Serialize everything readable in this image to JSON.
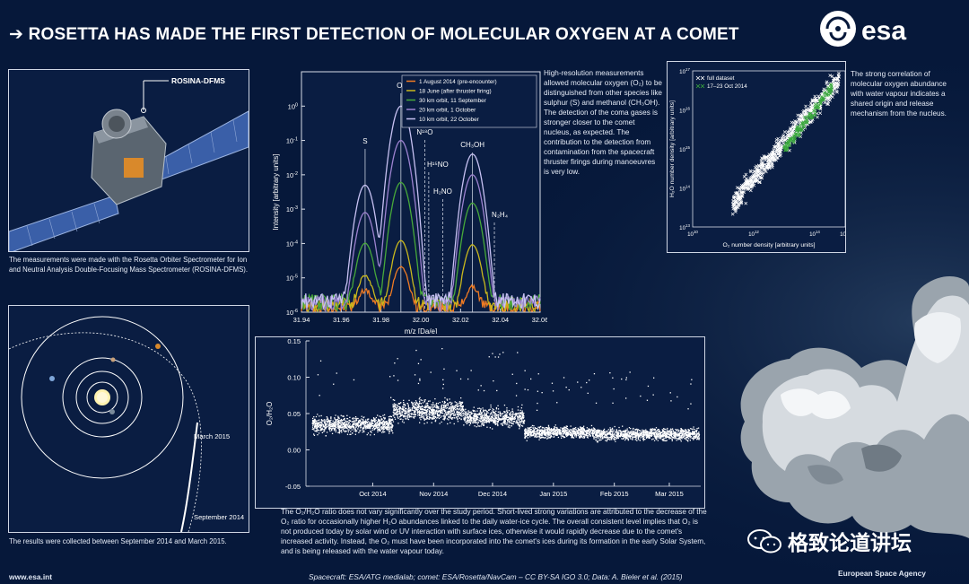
{
  "header": {
    "arrow": "➔",
    "title": "ROSETTA HAS MADE THE FIRST DETECTION OF MOLECULAR OXYGEN AT A COMET",
    "logo_text": "esa"
  },
  "colors": {
    "background": "#06183a",
    "series_aug": "#f07b23",
    "series_jun": "#c9b81d",
    "series_30km": "#47a83a",
    "series_20km": "#9c82cf",
    "series_10km": "#c7c1f2",
    "full_dataset": "#ffffff",
    "oct_subset": "#39a83c"
  },
  "spacecraft_panel": {
    "label": "ROSINA-DFMS",
    "caption": "The measurements were made with the Rosetta Orbiter Spectrometer for Ion and Neutral Analysis Double-Focusing Mass Spectrometer (ROSINA-DFMS)."
  },
  "orbit_panel": {
    "label_march": "March 2015",
    "label_september": "September 2014",
    "caption": "The results were collected between September 2014 and March 2015."
  },
  "spectrum_text": "High-resolution measurements allowed molecular oxygen (O₂) to be distinguished from other species like sulphur (S) and methanol (CH₃OH). The detection of the coma gases is stronger closer to the comet nucleus, as expected. The contribution to the detection from contamination from the spacecraft thruster firings during manoeuvres is very low.",
  "scatter_text": "The strong correlation of molecular oxygen abundance with water vapour indicates a shared origin and release mechanism from the nucleus.",
  "timeseries_text": "The O₂/H₂O ratio does not vary significantly over the study period. Short-lived strong variations are attributed to the decrease of the O₂ ratio for occasionally higher H₂O abundances linked to the daily water-ice cycle. The overall consistent level implies that O₂ is not produced today by solar wind or UV interaction with surface ices, otherwise it would rapidly decrease due to the comet's increased activity. Instead, the O₂ must have been incorporated into the comet's ices during its formation in the early Solar System, and is being released with the water vapour today.",
  "footer": {
    "url": "www.esa.int",
    "credits": "Spacecraft: ESA/ATG medialab; comet: ESA/Rosetta/NavCam – CC BY-SA IGO 3.0; Data: A. Bieler et al. (2015)",
    "agency": "European Space Agency",
    "watermark": "格致论道讲坛"
  },
  "chart_data": [
    {
      "type": "line",
      "name": "mass-spectrum",
      "xlabel": "m/z [Da/e]",
      "ylabel": "Intensity [arbitrary units]",
      "xlim": [
        31.94,
        32.06
      ],
      "ylim": [
        1e-06,
        10
      ],
      "yscale": "log",
      "xticks": [
        "31.94",
        "31.96",
        "31.98",
        "32.00",
        "32.02",
        "32.04",
        "32.06"
      ],
      "yticks": [
        {
          "base": "10",
          "exp": "0",
          "v": 1
        },
        {
          "base": "10",
          "exp": "-1",
          "v": 0.1
        },
        {
          "base": "10",
          "exp": "-2",
          "v": 0.01
        },
        {
          "base": "10",
          "exp": "-3",
          "v": 0.001
        },
        {
          "base": "10",
          "exp": "-4",
          "v": 0.0001
        },
        {
          "base": "10",
          "exp": "-5",
          "v": 1e-05
        },
        {
          "base": "10",
          "exp": "-6",
          "v": 1e-06
        }
      ],
      "peaks": [
        {
          "label": "S",
          "x": 31.972,
          "line": "solid"
        },
        {
          "label": "O₂",
          "x": 31.99,
          "line": "solid"
        },
        {
          "label": "N¹⁸O",
          "x": 32.002,
          "line": "dashed"
        },
        {
          "label": "H¹⁵NO",
          "x": 32.004,
          "line": "dashed"
        },
        {
          "label": "H₂NO",
          "x": 32.011,
          "line": "dashed"
        },
        {
          "label": "CH₃OH",
          "x": 32.026,
          "line": "solid"
        },
        {
          "label": "N₂H₄",
          "x": 32.037,
          "line": "dashed"
        }
      ],
      "legend_position": "top-right",
      "series": [
        {
          "name": "1 August 2014 (pre-encounter)",
          "color": "#f07b23",
          "noise": 1.3e-06,
          "peaks": [
            {
              "x": 31.972,
              "h": 3e-06,
              "w": 0.0035
            },
            {
              "x": 31.99,
              "h": 2e-05,
              "w": 0.0035
            },
            {
              "x": 32.026,
              "h": 4e-06,
              "w": 0.0035
            }
          ]
        },
        {
          "name": "18 June (after thruster firing)",
          "color": "#c9b81d",
          "noise": 1.6e-06,
          "peaks": [
            {
              "x": 31.972,
              "h": 1e-05,
              "w": 0.0035
            },
            {
              "x": 31.99,
              "h": 0.00012,
              "w": 0.0035
            },
            {
              "x": 32.026,
              "h": 9e-05,
              "w": 0.0035
            }
          ]
        },
        {
          "name": "30 km orbit, 11 September",
          "color": "#47a83a",
          "noise": 2e-06,
          "peaks": [
            {
              "x": 31.972,
              "h": 0.0001,
              "w": 0.0035
            },
            {
              "x": 31.99,
              "h": 0.006,
              "w": 0.0035
            },
            {
              "x": 32.026,
              "h": 0.0015,
              "w": 0.0035
            }
          ]
        },
        {
          "name": "20 km orbit, 1 October",
          "color": "#9c82cf",
          "noise": 1.8e-06,
          "peaks": [
            {
              "x": 31.972,
              "h": 0.0008,
              "w": 0.0035
            },
            {
              "x": 31.99,
              "h": 0.1,
              "w": 0.0035
            },
            {
              "x": 32.026,
              "h": 0.01,
              "w": 0.0035
            }
          ]
        },
        {
          "name": "10 km orbit, 22 October",
          "color": "#c7c1f2",
          "noise": 2.2e-06,
          "peaks": [
            {
              "x": 31.972,
              "h": 0.005,
              "w": 0.0035
            },
            {
              "x": 31.99,
              "h": 1.0,
              "w": 0.0035
            },
            {
              "x": 32.026,
              "h": 0.04,
              "w": 0.0035
            }
          ]
        }
      ]
    },
    {
      "type": "scatter",
      "name": "o2-vs-h2o",
      "xlabel": "O₂ number density [arbitrary units]",
      "ylabel": "H₂O number density [arbitrary units]",
      "xscale": "log",
      "yscale": "log",
      "xlim": [
        10000000000.0,
        1000000000000000.0
      ],
      "ylim": [
        10000000000000.0,
        1e+17
      ],
      "xticks": [
        {
          "base": "10",
          "exp": "10",
          "v": 10000000000.0
        },
        {
          "base": "10",
          "exp": "12",
          "v": 1000000000000.0
        },
        {
          "base": "10",
          "exp": "14",
          "v": 100000000000000.0
        },
        {
          "base": "10",
          "exp": "16",
          "v": 1e+16
        }
      ],
      "yticks": [
        {
          "base": "10",
          "exp": "17",
          "v": 1e+17
        },
        {
          "base": "10",
          "exp": "16",
          "v": 1e+16
        },
        {
          "base": "10",
          "exp": "15",
          "v": 1000000000000000.0
        },
        {
          "base": "10",
          "exp": "14",
          "v": 100000000000000.0
        },
        {
          "base": "10",
          "exp": "13",
          "v": 10000000000000.0
        }
      ],
      "legend_position": "top-left",
      "series": [
        {
          "name": "full dataset",
          "color": "#ffffff",
          "marker": "x",
          "trend": {
            "log_x": [
              11.3,
              14.8
            ],
            "log_y": [
              13.6,
              16.8
            ],
            "spread": 0.28,
            "count": 650
          }
        },
        {
          "name": "17–23 Oct 2014",
          "color": "#39a83c",
          "marker": "x",
          "trend": {
            "log_x": [
              13.0,
              14.6
            ],
            "log_y": [
              15.0,
              16.6
            ],
            "spread": 0.12,
            "count": 150
          }
        }
      ]
    },
    {
      "type": "scatter",
      "name": "o2-h2o-ratio-timeseries",
      "ylabel": "O₂/H₂O",
      "xlabel": "",
      "xlim": [
        "2014-09-11",
        "2015-03-31"
      ],
      "ylim": [
        -0.05,
        0.15
      ],
      "xticks": [
        "Oct 2014",
        "Nov 2014",
        "Dec 2014",
        "Jan 2015",
        "Feb 2015",
        "Mar 2015"
      ],
      "yticks": [
        "0.15",
        "0.10",
        "0.05",
        "0.00",
        "-0.05"
      ],
      "segments": [
        {
          "start": "2014-09-14",
          "end": "2014-10-25",
          "mean": 0.035,
          "sd": 0.011
        },
        {
          "start": "2014-10-25",
          "end": "2014-11-30",
          "mean": 0.055,
          "sd": 0.014
        },
        {
          "start": "2014-11-30",
          "end": "2014-12-31",
          "mean": 0.045,
          "sd": 0.012
        },
        {
          "start": "2014-12-31",
          "end": "2015-02-05",
          "mean": 0.025,
          "sd": 0.008
        },
        {
          "start": "2015-02-05",
          "end": "2015-03-30",
          "mean": 0.022,
          "sd": 0.008
        }
      ]
    }
  ]
}
